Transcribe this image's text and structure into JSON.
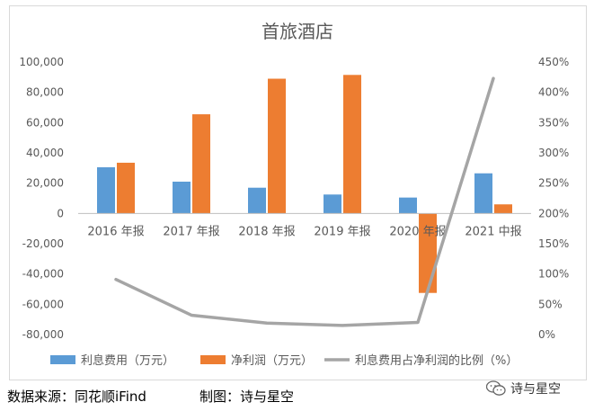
{
  "chart_data": {
    "type": "bar",
    "title": "首旅酒店",
    "categories": [
      "2016 年报",
      "2017 年报",
      "2018 年报",
      "2019 年报",
      "2020 年报",
      "2021 中报"
    ],
    "series": [
      {
        "name": "利息费用（万元）",
        "kind": "bar",
        "axis": "left",
        "color": "#5b9bd5",
        "values": [
          30500,
          21000,
          17000,
          12500,
          10500,
          26500
        ]
      },
      {
        "name": "净利润（万元）",
        "kind": "bar",
        "axis": "left",
        "color": "#ed7d31",
        "values": [
          33500,
          65500,
          89000,
          91500,
          -52500,
          6000
        ]
      },
      {
        "name": "利息费用占净利润的比例（%）",
        "kind": "line",
        "axis": "right",
        "color": "#a5a5a5",
        "values": [
          91,
          32,
          19,
          15,
          20,
          423
        ]
      }
    ],
    "left_axis": {
      "min": -80000,
      "max": 100000,
      "ticks": [
        100000,
        80000,
        60000,
        40000,
        20000,
        0,
        -20000,
        -40000,
        -60000,
        -80000
      ],
      "tick_labels": [
        "100,000",
        "80,000",
        "60,000",
        "40,000",
        "20,000",
        "0",
        "-20,000",
        "-40,000",
        "-60,000",
        "-80,000"
      ]
    },
    "right_axis": {
      "min": 0,
      "max": 450,
      "ticks": [
        450,
        400,
        350,
        300,
        250,
        200,
        150,
        100,
        50,
        0
      ],
      "tick_labels": [
        "450%",
        "400%",
        "350%",
        "300%",
        "250%",
        "200%",
        "150%",
        "100%",
        "50%",
        "0%"
      ]
    },
    "grid": false,
    "legend": "bottom"
  },
  "footer": {
    "source": "数据来源：同花顺iFind",
    "maker": "制图：诗与星空"
  },
  "watermark": {
    "text": "诗与星空",
    "icon": "wechat-icon"
  }
}
